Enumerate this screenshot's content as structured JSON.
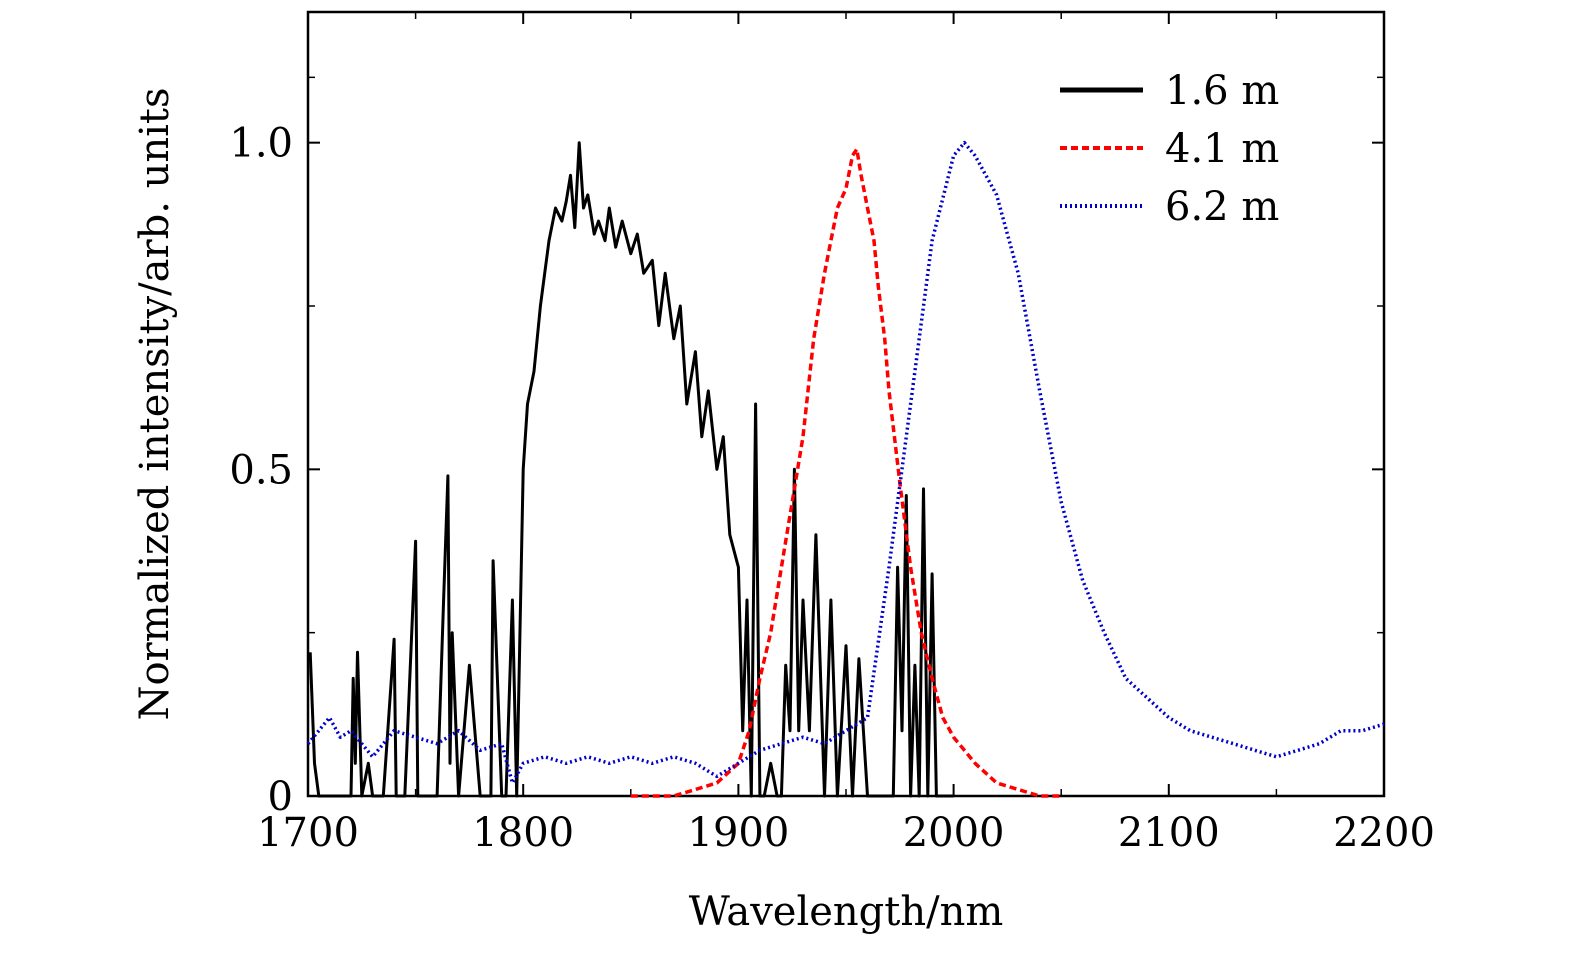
{
  "chart_data": {
    "type": "line",
    "xlabel": "Wavelength/nm",
    "ylabel": "Normalized intensity/arb. units",
    "xlim": [
      1700,
      2200
    ],
    "ylim": [
      0,
      1.2
    ],
    "x_ticks": [
      1700,
      1800,
      1900,
      2000,
      2100,
      2200
    ],
    "x_tick_labels": [
      "1700",
      "1800",
      "1900",
      "2000",
      "2100",
      "2200"
    ],
    "y_ticks": [
      0,
      0.5,
      1.0
    ],
    "y_tick_labels": [
      "0",
      "0.5",
      "1.0"
    ],
    "legend_position": "top-right",
    "grid": false,
    "series": [
      {
        "name": "1.6 m",
        "color": "#000000",
        "style": "solid",
        "x": [
          1701,
          1703,
          1705,
          1710,
          1720,
          1721,
          1722,
          1723,
          1725,
          1728,
          1730,
          1735,
          1740,
          1741,
          1745,
          1750,
          1751,
          1755,
          1760,
          1763,
          1765,
          1766,
          1767,
          1770,
          1775,
          1780,
          1785,
          1786,
          1790,
          1792,
          1795,
          1797,
          1800,
          1802,
          1805,
          1808,
          1810,
          1812,
          1815,
          1818,
          1820,
          1822,
          1824,
          1826,
          1828,
          1830,
          1833,
          1835,
          1838,
          1840,
          1843,
          1846,
          1850,
          1853,
          1856,
          1860,
          1863,
          1866,
          1870,
          1873,
          1876,
          1880,
          1883,
          1886,
          1890,
          1893,
          1896,
          1900,
          1902,
          1904,
          1906,
          1908,
          1910,
          1912,
          1915,
          1918,
          1920,
          1922,
          1924,
          1926,
          1928,
          1930,
          1933,
          1936,
          1940,
          1943,
          1946,
          1950,
          1953,
          1956,
          1960,
          1963,
          1966,
          1970,
          1972,
          1974,
          1976,
          1978,
          1980,
          1982,
          1984,
          1986,
          1988,
          1990,
          1992,
          1995,
          2000
        ],
        "y": [
          0.22,
          0.05,
          0.0,
          0.0,
          0.0,
          0.18,
          0.05,
          0.22,
          0.0,
          0.05,
          0.0,
          0.0,
          0.24,
          0.0,
          0.0,
          0.39,
          0.0,
          0.0,
          0.0,
          0.3,
          0.49,
          0.05,
          0.25,
          0.0,
          0.2,
          0.0,
          0.0,
          0.36,
          0.0,
          0.0,
          0.3,
          0.0,
          0.5,
          0.6,
          0.65,
          0.75,
          0.8,
          0.85,
          0.9,
          0.88,
          0.91,
          0.95,
          0.87,
          1.0,
          0.9,
          0.92,
          0.86,
          0.88,
          0.85,
          0.9,
          0.84,
          0.88,
          0.83,
          0.86,
          0.8,
          0.82,
          0.72,
          0.8,
          0.7,
          0.75,
          0.6,
          0.68,
          0.55,
          0.62,
          0.5,
          0.55,
          0.4,
          0.35,
          0.1,
          0.3,
          0.0,
          0.6,
          0.0,
          0.0,
          0.05,
          0.0,
          0.0,
          0.2,
          0.1,
          0.5,
          0.1,
          0.3,
          0.1,
          0.4,
          0.0,
          0.3,
          0.0,
          0.23,
          0.0,
          0.21,
          0.0,
          0.0,
          0.0,
          0.0,
          0.0,
          0.35,
          0.1,
          0.46,
          0.0,
          0.2,
          0.0,
          0.47,
          0.0,
          0.34,
          0.0,
          0.0,
          0.0
        ]
      },
      {
        "name": "4.1 m",
        "color": "#ff0000",
        "style": "dashed",
        "x": [
          1850,
          1860,
          1870,
          1880,
          1890,
          1900,
          1905,
          1910,
          1915,
          1920,
          1925,
          1930,
          1935,
          1940,
          1943,
          1946,
          1950,
          1953,
          1955,
          1957,
          1960,
          1963,
          1965,
          1968,
          1970,
          1975,
          1980,
          1985,
          1990,
          1995,
          2000,
          2005,
          2010,
          2020,
          2030,
          2040,
          2050
        ],
        "y": [
          0.0,
          0.0,
          0.0,
          0.01,
          0.02,
          0.05,
          0.1,
          0.18,
          0.25,
          0.35,
          0.45,
          0.55,
          0.7,
          0.8,
          0.85,
          0.9,
          0.93,
          0.98,
          0.99,
          0.95,
          0.9,
          0.85,
          0.78,
          0.7,
          0.62,
          0.48,
          0.35,
          0.25,
          0.18,
          0.12,
          0.09,
          0.07,
          0.05,
          0.02,
          0.01,
          0.0,
          0.0
        ]
      },
      {
        "name": "6.2 m",
        "color": "#0000cc",
        "style": "dotted",
        "x": [
          1700,
          1705,
          1710,
          1715,
          1720,
          1725,
          1730,
          1740,
          1750,
          1760,
          1770,
          1780,
          1790,
          1795,
          1800,
          1810,
          1820,
          1830,
          1840,
          1850,
          1860,
          1870,
          1880,
          1890,
          1900,
          1910,
          1920,
          1930,
          1940,
          1950,
          1960,
          1970,
          1980,
          1990,
          2000,
          2005,
          2010,
          2020,
          2030,
          2040,
          2050,
          2060,
          2070,
          2080,
          2090,
          2100,
          2110,
          2120,
          2130,
          2140,
          2150,
          2160,
          2170,
          2180,
          2190,
          2200
        ],
        "y": [
          0.08,
          0.1,
          0.12,
          0.09,
          0.1,
          0.08,
          0.06,
          0.1,
          0.09,
          0.08,
          0.1,
          0.07,
          0.08,
          0.02,
          0.05,
          0.06,
          0.05,
          0.06,
          0.05,
          0.06,
          0.05,
          0.06,
          0.05,
          0.03,
          0.05,
          0.07,
          0.08,
          0.09,
          0.08,
          0.1,
          0.12,
          0.35,
          0.6,
          0.85,
          0.98,
          1.0,
          0.98,
          0.92,
          0.8,
          0.62,
          0.45,
          0.33,
          0.25,
          0.18,
          0.15,
          0.12,
          0.1,
          0.09,
          0.08,
          0.07,
          0.06,
          0.07,
          0.08,
          0.1,
          0.1,
          0.11
        ]
      }
    ]
  }
}
